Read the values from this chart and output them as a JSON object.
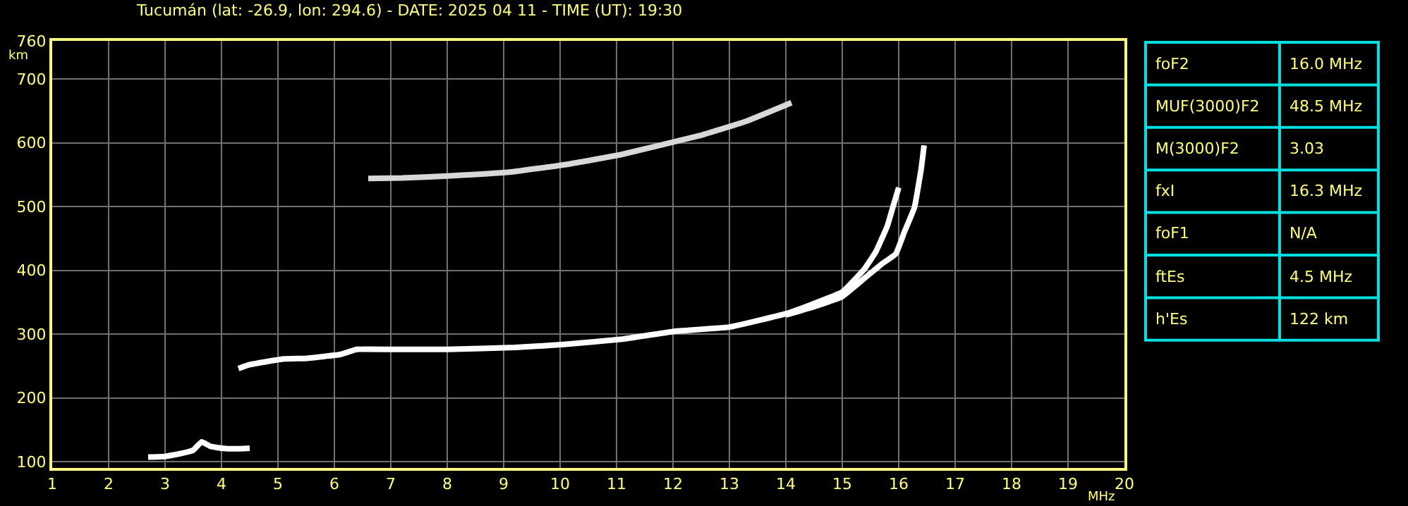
{
  "chart_data": [
    {
      "type": "line",
      "title": "Tucumán (lat: -26.9, lon: 294.6) - DATE: 2025 04 11 - TIME (UT): 19:30",
      "xlabel": "MHz",
      "ylabel": "km",
      "xlim": [
        1,
        20
      ],
      "xticks": [
        1,
        2,
        3,
        4,
        5,
        6,
        7,
        8,
        9,
        10,
        11,
        12,
        13,
        14,
        15,
        16,
        17,
        18,
        19,
        20
      ],
      "ylim": [
        90,
        760
      ],
      "yticks": [
        100,
        200,
        300,
        400,
        500,
        600,
        700,
        760
      ],
      "grid": true,
      "marker": "none",
      "line_style": "solid",
      "series": [
        {
          "color": "#ffffff",
          "x": [
            4.3,
            4.5,
            5.1,
            5.5,
            6.1,
            6.4,
            7,
            8,
            9.2,
            10.1,
            11.1,
            12,
            13,
            14,
            14.5,
            15,
            15.4,
            15.6,
            15.8,
            15.9,
            16.0
          ],
          "values": [
            246,
            252,
            261,
            262,
            268,
            276,
            276,
            276,
            279,
            284,
            292,
            304,
            311,
            332,
            348,
            366,
            403,
            430,
            470,
            500,
            530
          ]
        },
        {
          "color": "#ffffff",
          "x": [
            14,
            14.5,
            15,
            15.4,
            15.7,
            15.95,
            16.1,
            16.28,
            16.4,
            16.45
          ],
          "values": [
            330,
            343,
            359,
            388,
            410,
            426,
            460,
            499,
            560,
            596
          ]
        },
        {
          "color": "#ffffff",
          "x": [
            2.7,
            3.0,
            3.3,
            3.5,
            3.65,
            3.8,
            4.0,
            4.25,
            4.5
          ],
          "values": [
            107,
            108,
            113,
            118,
            131,
            124,
            121,
            120,
            121
          ]
        },
        {
          "color": "#d8d8d8",
          "x": [
            6.6,
            7.2,
            8,
            9.1,
            10.1,
            11.1,
            12.5,
            12.65,
            13.3,
            14.1
          ],
          "values": [
            544,
            545,
            548,
            554,
            566,
            582,
            612,
            616,
            634,
            663
          ]
        }
      ]
    },
    {
      "type": "other",
      "annotations": [
        "foF2",
        "16.0 MHz",
        "MUF(3000)F2",
        "48.5 MHz",
        "M(3000)F2",
        "3.03",
        "fxI",
        "16.3 MHz",
        "foF1",
        "N/A",
        "ftEs",
        "4.5 MHz",
        "h'Es",
        "122 km"
      ]
    }
  ]
}
